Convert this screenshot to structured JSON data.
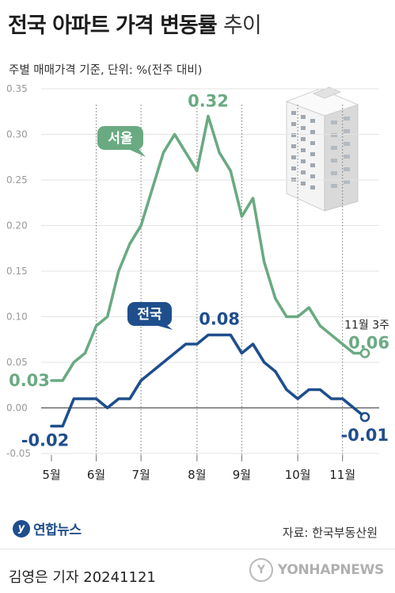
{
  "header": {
    "title_main": "전국 아파트 가격 변동률",
    "title_suffix": "추이",
    "subtitle": "주별 매매가격 기준, 단위: %(전주 대비)"
  },
  "footer": {
    "logo_text": "연합뉴스",
    "source": "자료: 한국부동산원",
    "credit": "김영은 기자  20241121",
    "watermark": "YONHAPNEWS"
  },
  "chart_data": {
    "type": "line",
    "ylim": [
      -0.05,
      0.35
    ],
    "yticks": [
      "-0.05",
      "0.00",
      "0.05",
      "0.10",
      "0.15",
      "0.20",
      "0.25",
      "0.30",
      "0.35"
    ],
    "months": [
      "5월",
      "6월",
      "7월",
      "8월",
      "9월",
      "10월",
      "11월"
    ],
    "end_label": "11월 3주",
    "series": [
      {
        "name": "서울",
        "color": "#6aaa82",
        "values": [
          0.03,
          0.03,
          0.05,
          0.06,
          0.09,
          0.1,
          0.15,
          0.18,
          0.2,
          0.24,
          0.28,
          0.3,
          0.28,
          0.26,
          0.32,
          0.28,
          0.26,
          0.21,
          0.23,
          0.16,
          0.12,
          0.1,
          0.1,
          0.11,
          0.09,
          0.08,
          0.07,
          0.06,
          0.06
        ],
        "start_label": "0.03",
        "peak_label": "0.32",
        "end_value_label": "0.06"
      },
      {
        "name": "전국",
        "color": "#1f4e8c",
        "values": [
          -0.02,
          -0.02,
          0.01,
          0.01,
          0.01,
          0.0,
          0.01,
          0.01,
          0.03,
          0.04,
          0.05,
          0.06,
          0.07,
          0.07,
          0.08,
          0.08,
          0.08,
          0.06,
          0.07,
          0.05,
          0.04,
          0.02,
          0.01,
          0.02,
          0.02,
          0.01,
          0.01,
          0.0,
          -0.01
        ],
        "start_label": "-0.02",
        "peak_label": "0.08",
        "end_value_label": "-0.01"
      }
    ]
  }
}
